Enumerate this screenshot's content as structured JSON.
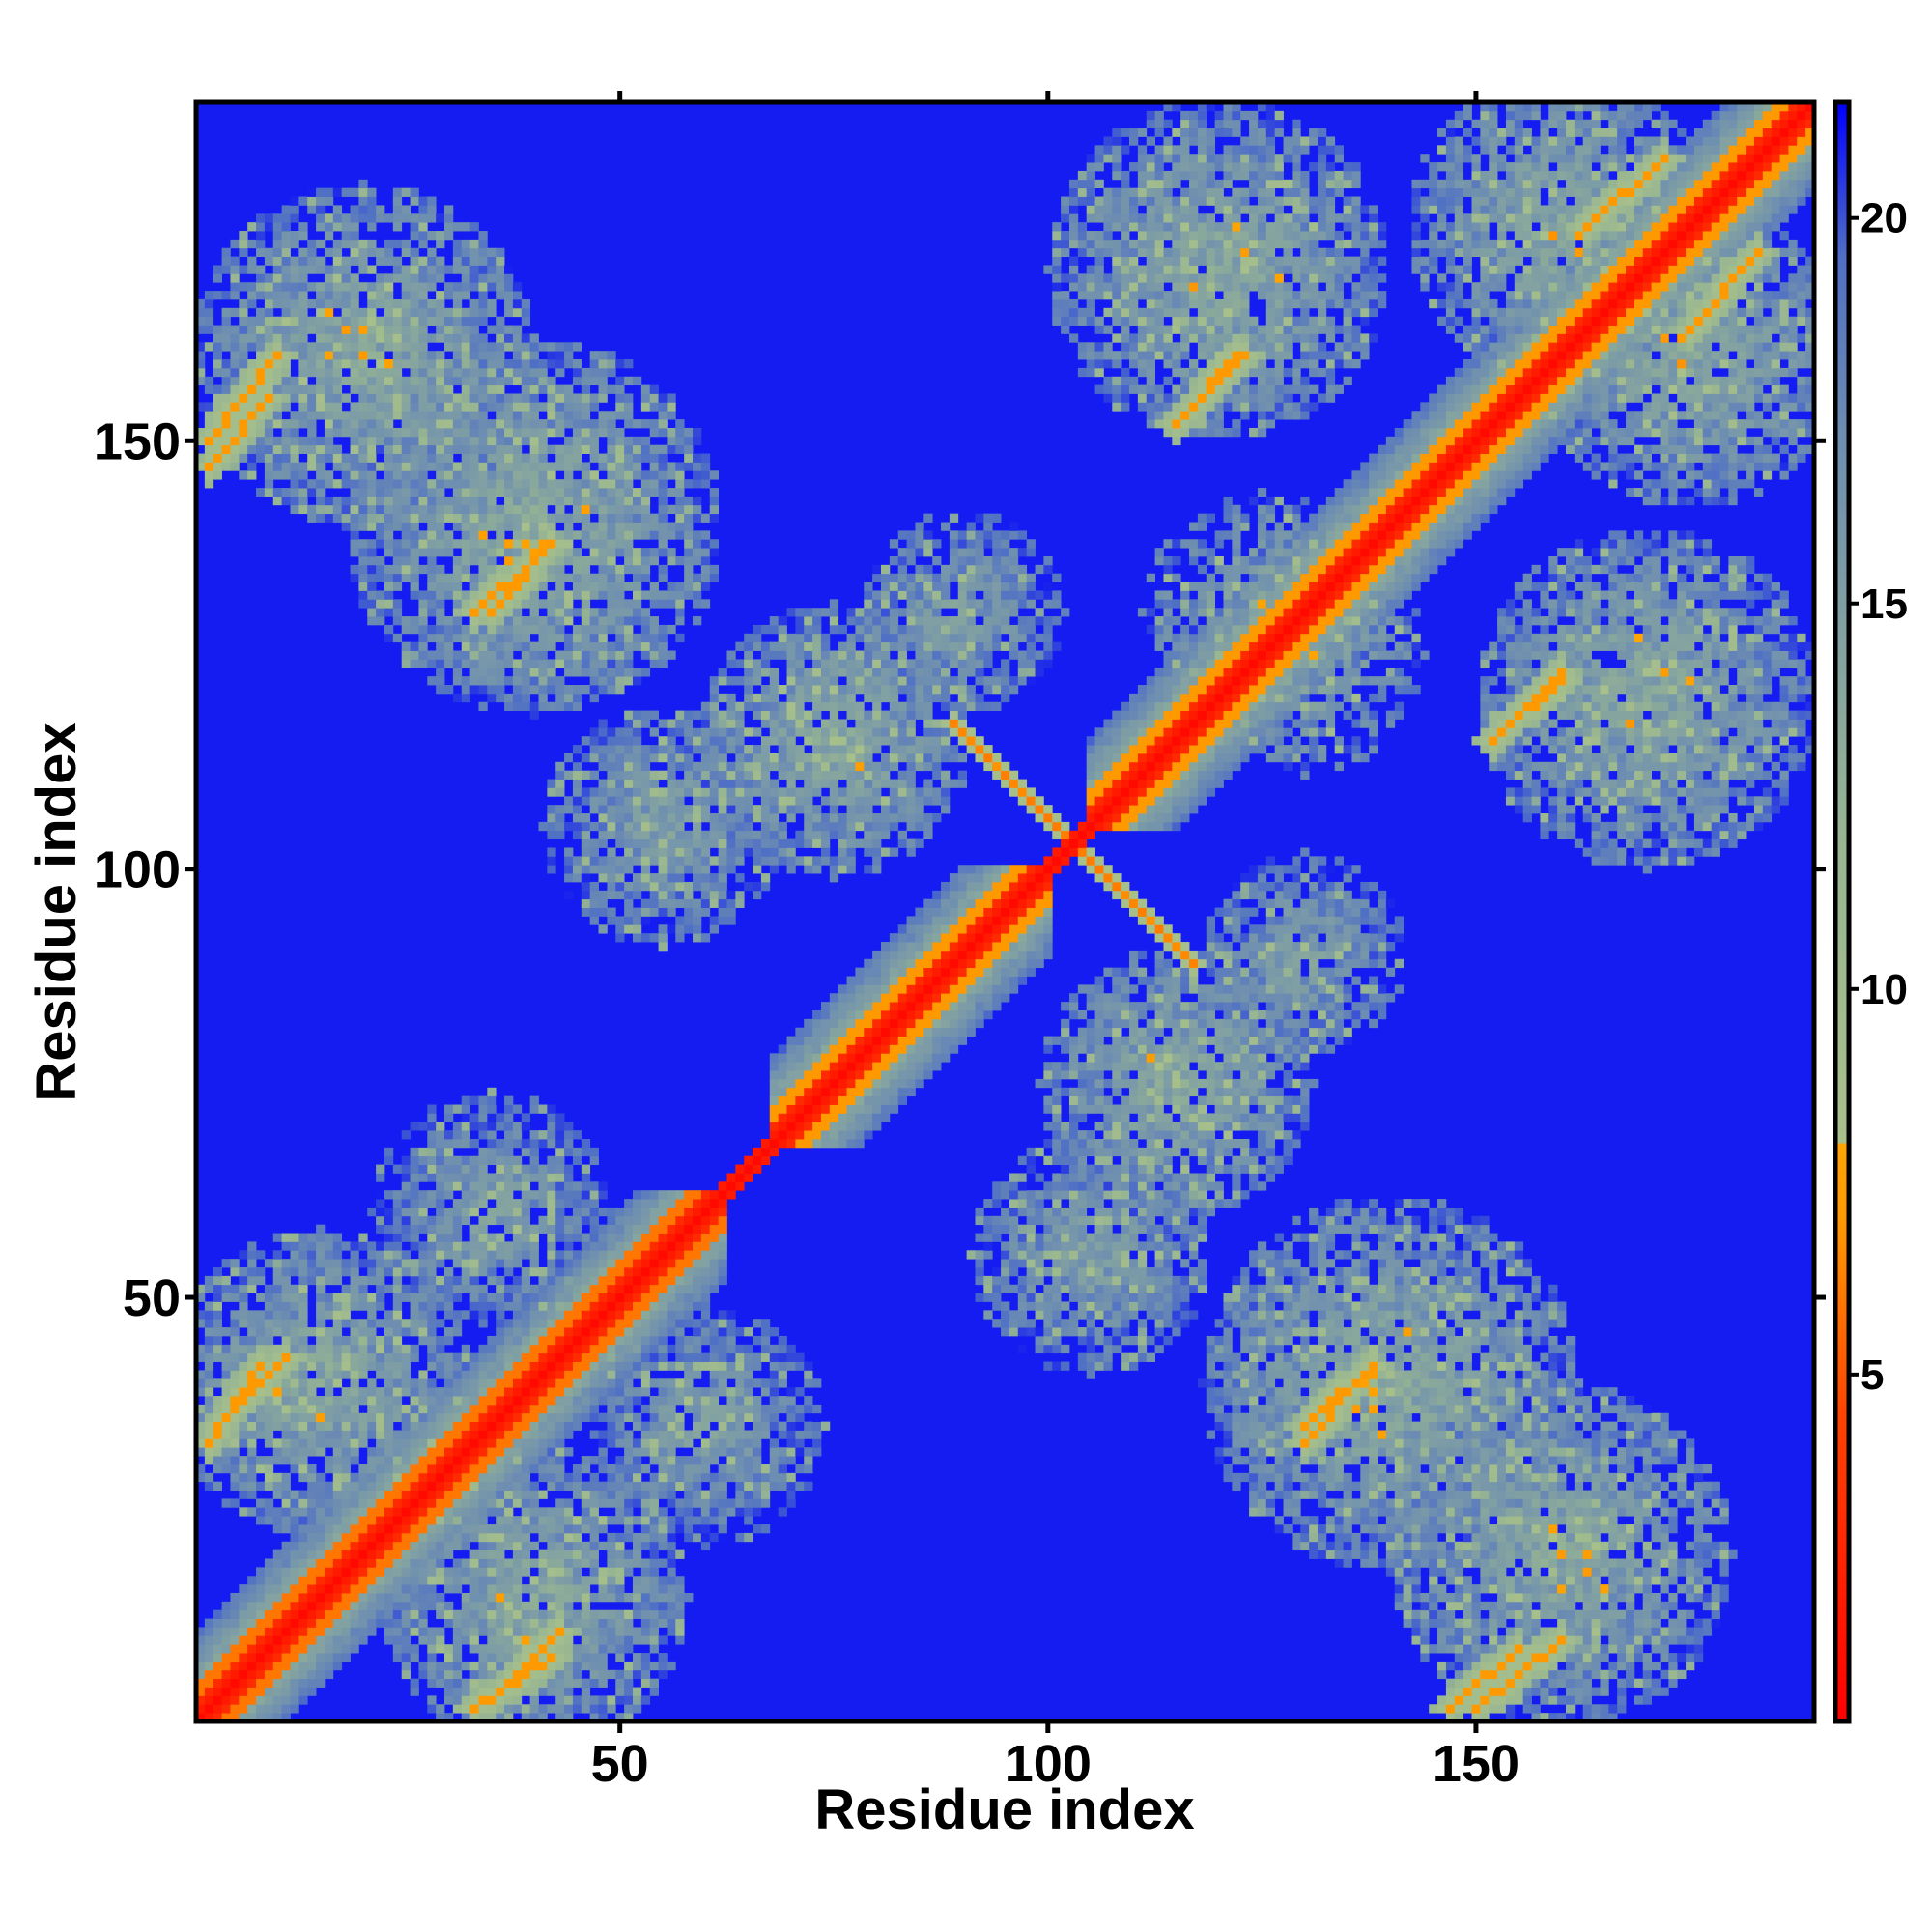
{
  "chart_data": {
    "type": "heatmap",
    "title": "",
    "xlabel": "Residue index",
    "ylabel": "Residue index",
    "n_residues": 189,
    "xlim": [
      1,
      189
    ],
    "ylim": [
      1,
      189
    ],
    "x_ticks": [
      50,
      100,
      150
    ],
    "y_ticks": [
      50,
      100,
      150
    ],
    "tick_labels": {
      "x": [
        "50",
        "100",
        "150"
      ],
      "y": [
        "50",
        "100",
        "150"
      ]
    },
    "colorbar": {
      "range": [
        0.5,
        21.5
      ],
      "ticks": [
        5,
        10,
        15,
        20
      ],
      "tick_labels": [
        "5",
        "10",
        "15",
        "20"
      ],
      "stops": [
        {
          "value": 0.5,
          "color": "#ff0000"
        },
        {
          "value": 4.5,
          "color": "#ff4400"
        },
        {
          "value": 7.0,
          "color": "#ff9900"
        },
        {
          "value": 8.0,
          "color": "#ffa500"
        },
        {
          "value": 8.0,
          "color": "#a8c08a"
        },
        {
          "value": 12.0,
          "color": "#97b592"
        },
        {
          "value": 17.0,
          "color": "#6f8fb0"
        },
        {
          "value": 19.5,
          "color": "#4f6fc6"
        },
        {
          "value": 21.5,
          "color": "#0000ff"
        }
      ]
    },
    "background_value": 21,
    "features": [
      {
        "kind": "diagonal",
        "from": 1,
        "to": 189,
        "value": 1
      },
      {
        "kind": "helix_band",
        "from": 1,
        "to": 62,
        "value": 6
      },
      {
        "kind": "helix_band",
        "from": 68,
        "to": 100,
        "value": 7
      },
      {
        "kind": "helix_band",
        "from": 105,
        "to": 189,
        "value": 7
      },
      {
        "kind": "antiparallel",
        "center": [
          103,
          103
        ],
        "half_length": 14,
        "value": 6
      },
      {
        "kind": "parallel",
        "i_from": 2,
        "i_to": 10,
        "j_from": 150,
        "j_to": 160,
        "value": 7
      },
      {
        "kind": "parallel",
        "i_from": 33,
        "i_to": 42,
        "j_from": 2,
        "j_to": 8,
        "value": 7
      },
      {
        "kind": "parallel",
        "i_from": 5,
        "i_to": 11,
        "j_from": 37,
        "j_to": 43,
        "value": 7
      },
      {
        "kind": "parallel",
        "i_from": 147,
        "i_to": 155,
        "j_from": 2,
        "j_to": 9,
        "value": 7
      },
      {
        "kind": "parallel",
        "i_from": 130,
        "i_to": 136,
        "j_from": 33,
        "j_to": 40,
        "value": 7
      },
      {
        "kind": "parallel",
        "i_from": 35,
        "i_to": 42,
        "j_from": 130,
        "j_to": 138,
        "value": 7
      },
      {
        "kind": "parallel",
        "i_from": 115,
        "i_to": 123,
        "j_from": 152,
        "j_to": 160,
        "value": 7
      },
      {
        "kind": "parallel",
        "i_from": 152,
        "i_to": 160,
        "j_from": 115,
        "j_to": 122,
        "value": 7
      },
      {
        "kind": "parallel",
        "i_from": 163,
        "i_to": 172,
        "j_from": 175,
        "j_to": 183,
        "value": 7
      },
      {
        "kind": "cluster",
        "center": [
          40,
          140
        ],
        "radius": 22,
        "value": 12
      },
      {
        "kind": "cluster",
        "center": [
          140,
          40
        ],
        "radius": 22,
        "value": 12
      },
      {
        "kind": "cluster",
        "center": [
          20,
          160
        ],
        "radius": 20,
        "value": 12
      },
      {
        "kind": "cluster",
        "center": [
          160,
          20
        ],
        "radius": 20,
        "value": 12
      },
      {
        "kind": "cluster",
        "center": [
          120,
          170
        ],
        "radius": 20,
        "value": 12
      },
      {
        "kind": "cluster",
        "center": [
          170,
          120
        ],
        "radius": 20,
        "value": 12
      },
      {
        "kind": "cluster",
        "center": [
          75,
          115
        ],
        "radius": 16,
        "value": 12
      },
      {
        "kind": "cluster",
        "center": [
          115,
          75
        ],
        "radius": 16,
        "value": 12
      },
      {
        "kind": "cluster",
        "center": [
          15,
          40
        ],
        "radius": 18,
        "value": 12
      },
      {
        "kind": "cluster",
        "center": [
          40,
          15
        ],
        "radius": 18,
        "value": 12
      },
      {
        "kind": "cluster",
        "center": [
          160,
          175
        ],
        "radius": 18,
        "value": 12
      },
      {
        "kind": "cluster",
        "center": [
          175,
          160
        ],
        "radius": 18,
        "value": 12
      },
      {
        "kind": "cluster",
        "center": [
          55,
          105
        ],
        "radius": 14,
        "value": 13
      },
      {
        "kind": "cluster",
        "center": [
          105,
          55
        ],
        "radius": 14,
        "value": 13
      },
      {
        "kind": "cluster",
        "center": [
          35,
          60
        ],
        "radius": 14,
        "value": 13
      },
      {
        "kind": "cluster",
        "center": [
          60,
          35
        ],
        "radius": 14,
        "value": 13
      },
      {
        "kind": "cluster",
        "center": [
          125,
          130
        ],
        "radius": 14,
        "value": 12
      },
      {
        "kind": "cluster",
        "center": [
          90,
          130
        ],
        "radius": 12,
        "value": 13
      },
      {
        "kind": "cluster",
        "center": [
          130,
          90
        ],
        "radius": 12,
        "value": 13
      }
    ]
  },
  "colors": {
    "background": "#ffffff",
    "frame": "#000000"
  }
}
